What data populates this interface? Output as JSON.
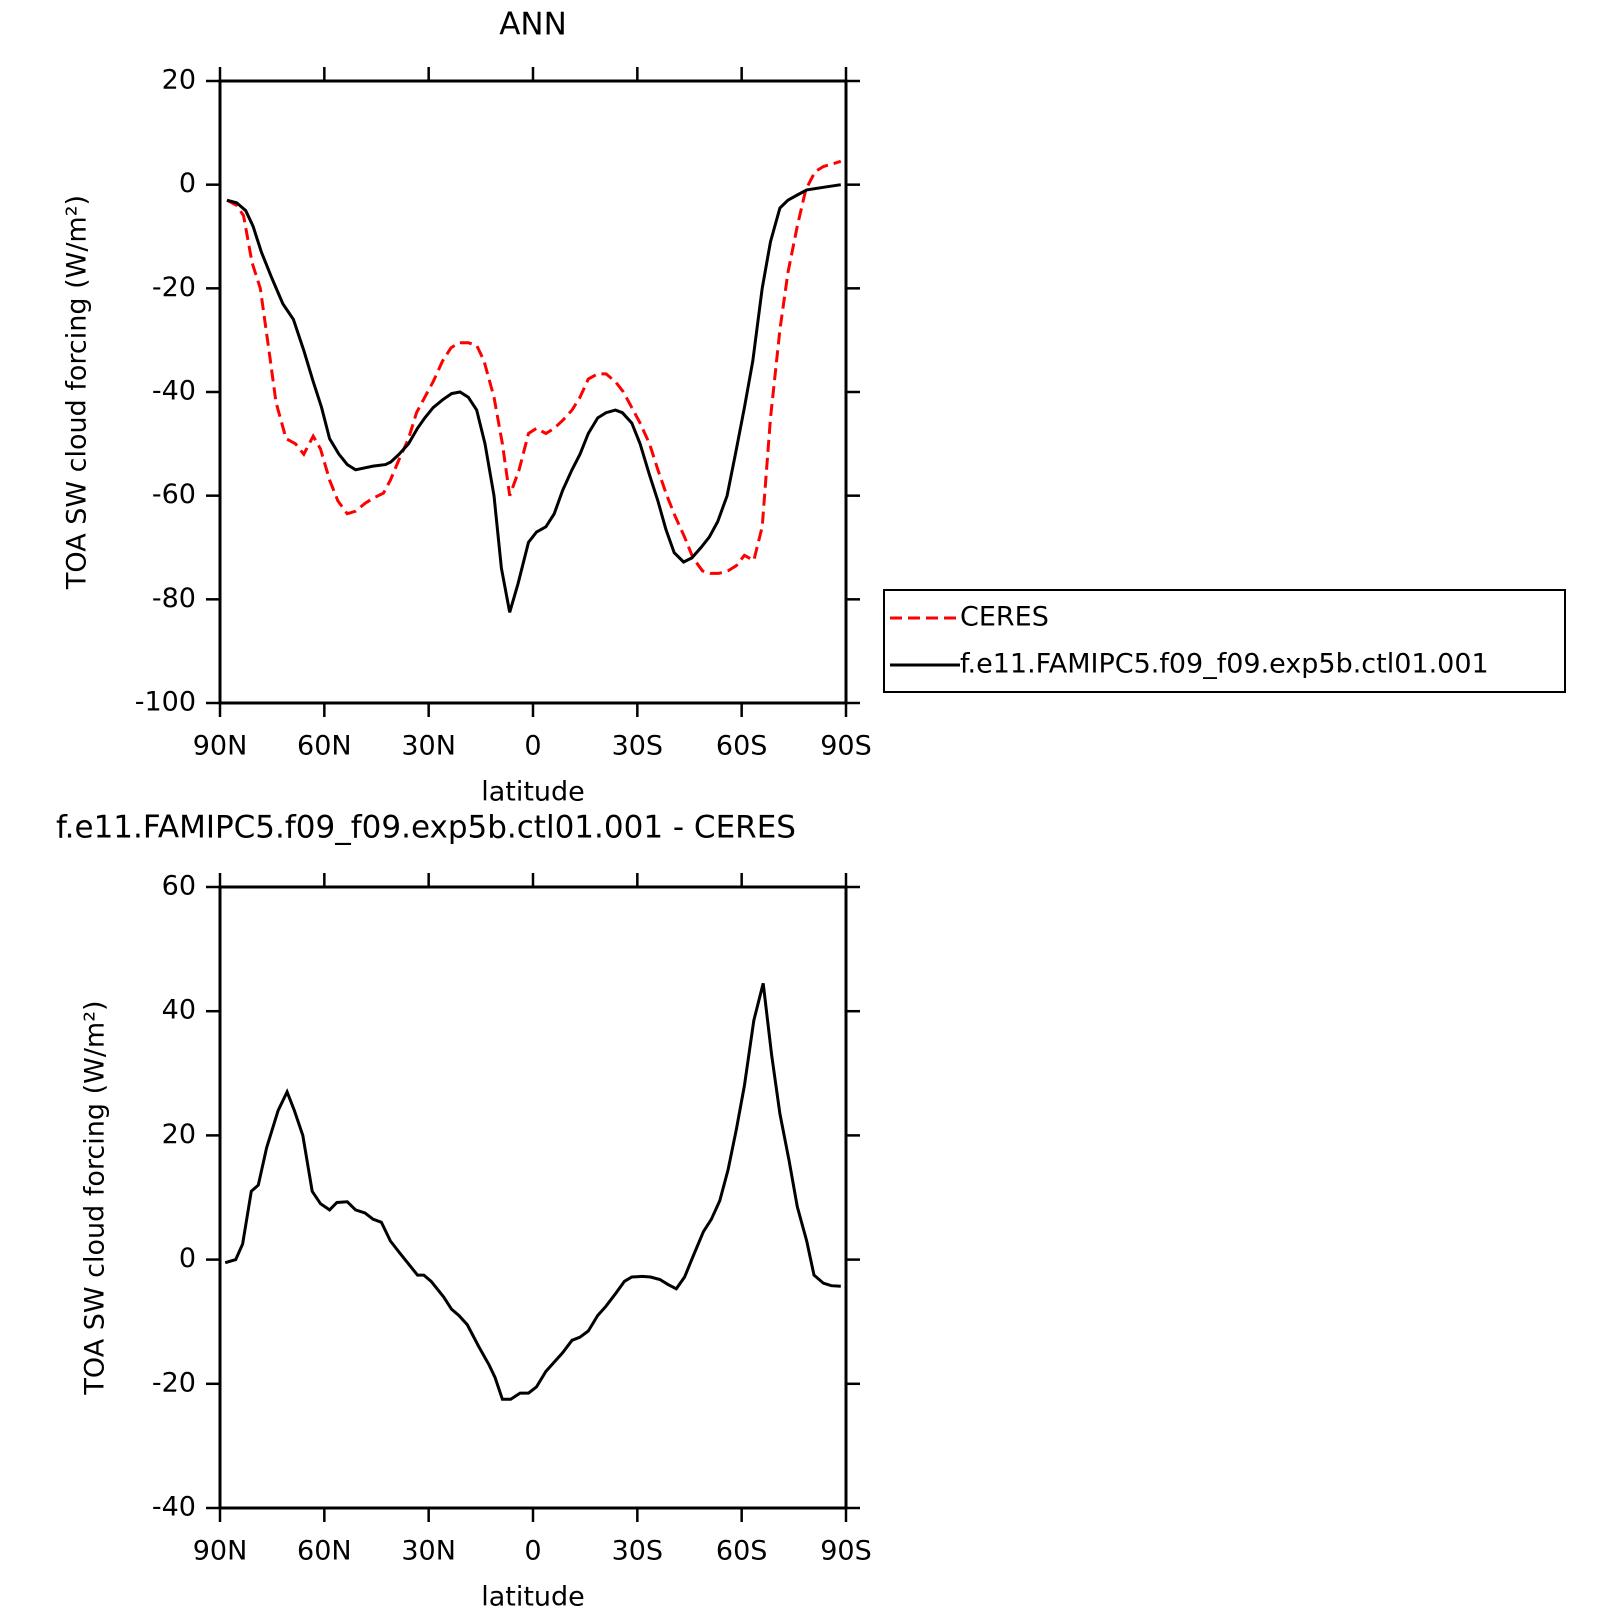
{
  "chart_data": [
    {
      "type": "line",
      "title": "ANN",
      "x_label": "latitude",
      "y_label": "TOA SW cloud forcing (W/m²)",
      "xlim": [
        90,
        -90
      ],
      "ylim": [
        -100,
        20
      ],
      "xticks": [
        {
          "value": 90,
          "label": "90N"
        },
        {
          "value": 60,
          "label": "60N"
        },
        {
          "value": 30,
          "label": "30N"
        },
        0,
        {
          "value": -30,
          "label": "30S"
        },
        {
          "value": -60,
          "label": "60S"
        },
        {
          "value": -90,
          "label": "90S"
        }
      ],
      "yticks": [
        -100,
        -80,
        -60,
        -40,
        -20,
        0,
        20
      ],
      "legend": "right",
      "series": [
        {
          "name": "CERES",
          "color": "#ff0000",
          "dashed": true,
          "x": [
            88,
            85.2,
            83.2,
            80.8,
            78.4,
            75.7,
            73.9,
            71,
            68.3,
            65.9,
            63.2,
            61.1,
            58.5,
            56.1,
            53.4,
            51,
            48.3,
            46,
            43,
            41,
            38.5,
            35.8,
            33.5,
            31.1,
            28.7,
            26,
            23.6,
            21.3,
            18.6,
            16.2,
            14.1,
            11.2,
            8.8,
            6.7,
            4,
            1.3,
            -1,
            -3.7,
            -6.1,
            -8.5,
            -11.2,
            -13.5,
            -15.9,
            -18.6,
            -21,
            -23.7,
            -26,
            -28.4,
            -30.8,
            -33.5,
            -35.9,
            -38.5,
            -40.9,
            -43.6,
            -46,
            -48.7,
            -51,
            -53.4,
            -56.1,
            -58.5,
            -60.8,
            -63.5,
            -65.9,
            -68.3,
            -71,
            -73.3,
            -76,
            -78.4,
            -81.1,
            -83.5,
            -86.1,
            -88.5
          ],
          "values": [
            -3,
            -4,
            -6,
            -15,
            -20,
            -33,
            -42,
            -49,
            -50,
            -52,
            -48.5,
            -51,
            -57,
            -61,
            -63.5,
            -63,
            -61.5,
            -60.5,
            -59.5,
            -57,
            -53,
            -49,
            -44,
            -41,
            -38,
            -34,
            -31.5,
            -30.5,
            -30.5,
            -31,
            -34,
            -41,
            -50,
            -60,
            -55,
            -48,
            -47,
            -48,
            -47,
            -45.5,
            -43.5,
            -41,
            -37.5,
            -36.5,
            -36.5,
            -38,
            -40,
            -43,
            -46,
            -50,
            -55,
            -60,
            -64,
            -68,
            -72,
            -74.5,
            -75,
            -75,
            -74.5,
            -73.5,
            -71.5,
            -72.5,
            -66,
            -45,
            -28,
            -17,
            -8,
            -1,
            2.5,
            3.5,
            4,
            4.5
          ]
        },
        {
          "name": "f.e11.FAMIPC5.f09_f09.exp5b.ctl01.001",
          "color": "#000000",
          "dashed": false,
          "x": [
            88,
            85.2,
            82.6,
            80.5,
            78.1,
            75.1,
            71.9,
            68.9,
            65.9,
            63.2,
            60.8,
            58.5,
            55.8,
            53.4,
            51,
            46,
            42.4,
            40.9,
            38.5,
            35.8,
            33.2,
            31.1,
            28.7,
            26,
            23.4,
            21,
            18.6,
            16.2,
            13.8,
            11.2,
            9.1,
            6.7,
            4.3,
            1.3,
            -1,
            -3.7,
            -6.1,
            -8.5,
            -11.2,
            -13.5,
            -15.9,
            -18.6,
            -21,
            -23.7,
            -25.7,
            -28.4,
            -30.8,
            -33.5,
            -35.9,
            -38.2,
            -40.6,
            -43.3,
            -45.7,
            -48.3,
            -50.7,
            -53.1,
            -55.8,
            -58.2,
            -60.8,
            -63.2,
            -65.9,
            -68.3,
            -71,
            -73.3,
            -76,
            -78.7,
            -83.5,
            -88.5
          ],
          "values": [
            -3,
            -3.5,
            -5,
            -8,
            -13,
            -18,
            -23,
            -26,
            -32,
            -38,
            -43,
            -49,
            -52,
            -54,
            -55,
            -54.3,
            -54,
            -53.5,
            -52,
            -50,
            -47,
            -45,
            -43,
            -41.5,
            -40.3,
            -40,
            -41,
            -43.5,
            -50,
            -60,
            -74,
            -82.5,
            -77,
            -69,
            -67,
            -66,
            -63.5,
            -59,
            -55,
            -52,
            -48,
            -45,
            -44,
            -43.5,
            -44,
            -46,
            -50,
            -56,
            -61,
            -66.5,
            -71,
            -72.8,
            -72,
            -70,
            -68,
            -65,
            -60,
            -52,
            -43,
            -34,
            -20,
            -11,
            -4.5,
            -3,
            -2,
            -1,
            -0.5,
            0
          ]
        }
      ]
    },
    {
      "type": "line",
      "title": "f.e11.FAMIPC5.f09_f09.exp5b.ctl01.001 - CERES",
      "x_label": "latitude",
      "y_label": "TOA SW cloud forcing (W/m²)",
      "xlim": [
        90,
        -90
      ],
      "ylim": [
        -40,
        60
      ],
      "xticks": [
        {
          "value": 90,
          "label": "90N"
        },
        {
          "value": 60,
          "label": "60N"
        },
        {
          "value": 30,
          "label": "30N"
        },
        0,
        {
          "value": -30,
          "label": "30S"
        },
        {
          "value": -60,
          "label": "60S"
        },
        {
          "value": -90,
          "label": "90S"
        }
      ],
      "yticks": [
        -40,
        -20,
        0,
        20,
        40,
        60
      ],
      "series": [
        {
          "color": "#000000",
          "dashed": false,
          "x": [
            88.5,
            85.5,
            83.5,
            81,
            79,
            76.6,
            73.3,
            70.7,
            68.6,
            66.2,
            63.5,
            61.1,
            58.5,
            56.4,
            53.4,
            51,
            48.3,
            46,
            43.6,
            41,
            38.2,
            33.2,
            31.4,
            29.3,
            25.7,
            23.4,
            21.3,
            18.9,
            15.6,
            12.6,
            10.9,
            8.8,
            6.4,
            3.7,
            1.3,
            -1,
            -3.7,
            -8.5,
            -11.2,
            -13.5,
            -15.9,
            -18.6,
            -21,
            -23.7,
            -26.3,
            -28.4,
            -31.4,
            -33.8,
            -36.5,
            -38.8,
            -41.2,
            -43.6,
            -46,
            -49,
            -51.3,
            -53.7,
            -56.1,
            -58.5,
            -60.8,
            -63.5,
            -66.2,
            -68.6,
            -71,
            -73.6,
            -76,
            -78.7,
            -80.8,
            -83.5,
            -85.8,
            -88.5
          ],
          "values": [
            -0.5,
            0,
            2.5,
            11,
            12,
            18,
            24,
            27,
            24,
            20,
            11,
            9,
            8,
            9.2,
            9.3,
            8,
            7.5,
            6.5,
            6,
            3,
            1,
            -2.5,
            -2.5,
            -3.5,
            -6,
            -8,
            -9,
            -10.5,
            -14,
            -17,
            -19,
            -22.5,
            -22.5,
            -21.5,
            -21.5,
            -20.5,
            -18,
            -15,
            -13,
            -12.5,
            -11.5,
            -9,
            -7.5,
            -5.5,
            -3.5,
            -2.8,
            -2.7,
            -2.8,
            -3.2,
            -4,
            -4.7,
            -2.8,
            0.5,
            4.5,
            6.5,
            9.5,
            14.5,
            21,
            28,
            38.5,
            44.5,
            33,
            23.5,
            16,
            8.5,
            3,
            -2.5,
            -3.8,
            -4.2,
            -4.3
          ]
        }
      ]
    }
  ]
}
